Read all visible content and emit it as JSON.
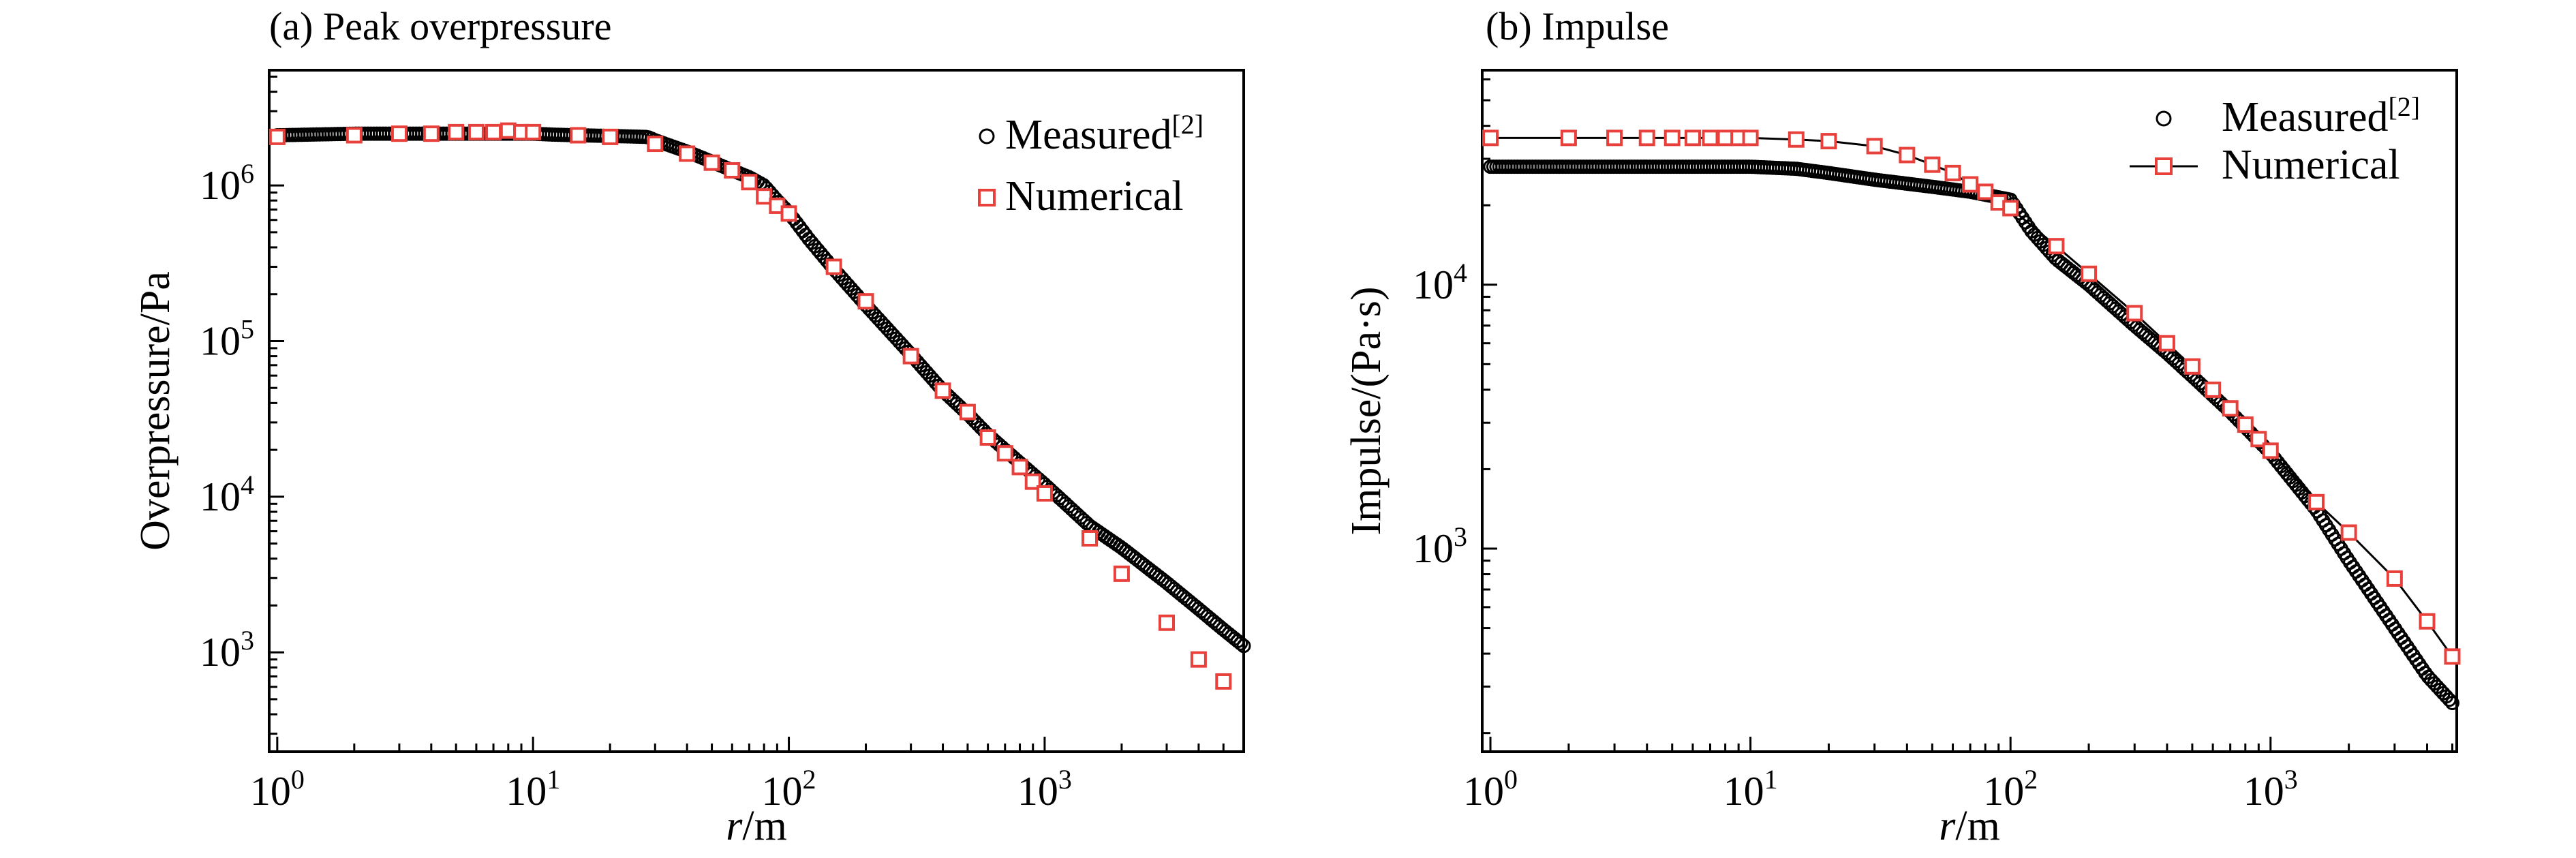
{
  "colors": {
    "measured": "#000000",
    "numerical": "#e8413c",
    "axis": "#000000"
  },
  "chart_data": [
    {
      "panel": "a",
      "type": "scatter",
      "title": "(a) Peak overpressure",
      "xlabel_var": "r",
      "xlabel_unit": "/m",
      "ylabel": "Overpressure/Pa",
      "x_scale": "log",
      "y_scale": "log",
      "xlim": [
        0.93,
        6000
      ],
      "ylim": [
        230,
        5500000
      ],
      "x_ticks": [
        {
          "base": "10",
          "exp": "0",
          "value": 1
        },
        {
          "base": "10",
          "exp": "1",
          "value": 10
        },
        {
          "base": "10",
          "exp": "2",
          "value": 100
        },
        {
          "base": "10",
          "exp": "3",
          "value": 1000
        }
      ],
      "y_ticks": [
        {
          "base": "10",
          "exp": "3",
          "value": 1000
        },
        {
          "base": "10",
          "exp": "4",
          "value": 10000
        },
        {
          "base": "10",
          "exp": "5",
          "value": 100000
        },
        {
          "base": "10",
          "exp": "6",
          "value": 1000000
        }
      ],
      "legend_position": "top-right",
      "series": [
        {
          "name": "Measured",
          "name_sup": "[2]",
          "marker": "circle",
          "dense": true,
          "points": [
            [
              1,
              2100000
            ],
            [
              2,
              2150000
            ],
            [
              3,
              2150000
            ],
            [
              4,
              2150000
            ],
            [
              5,
              2150000
            ],
            [
              6,
              2150000
            ],
            [
              7,
              2150000
            ],
            [
              8,
              2150000
            ],
            [
              9,
              2150000
            ],
            [
              10,
              2150000
            ],
            [
              12,
              2120000
            ],
            [
              15,
              2100000
            ],
            [
              20,
              2080000
            ],
            [
              28,
              2050000
            ],
            [
              30,
              1950000
            ],
            [
              40,
              1650000
            ],
            [
              50,
              1420000
            ],
            [
              60,
              1250000
            ],
            [
              70,
              1130000
            ],
            [
              80,
              1000000
            ],
            [
              90,
              800000
            ],
            [
              100,
              670000
            ],
            [
              120,
              450000
            ],
            [
              150,
              290000
            ],
            [
              200,
              170000
            ],
            [
              300,
              82000
            ],
            [
              400,
              48000
            ],
            [
              500,
              34000
            ],
            [
              600,
              25000
            ],
            [
              700,
              20000
            ],
            [
              800,
              16500
            ],
            [
              1000,
              12000
            ],
            [
              1500,
              6500
            ],
            [
              2000,
              4700
            ],
            [
              3000,
              2800
            ],
            [
              4000,
              1900
            ],
            [
              5000,
              1400
            ],
            [
              6000,
              1100
            ]
          ]
        },
        {
          "name": "Numerical",
          "marker": "square",
          "points": [
            [
              1,
              2050000
            ],
            [
              2,
              2100000
            ],
            [
              3,
              2150000
            ],
            [
              4,
              2150000
            ],
            [
              5,
              2200000
            ],
            [
              6,
              2200000
            ],
            [
              7,
              2200000
            ],
            [
              8,
              2250000
            ],
            [
              9,
              2200000
            ],
            [
              10,
              2200000
            ],
            [
              15,
              2100000
            ],
            [
              20,
              2050000
            ],
            [
              30,
              1850000
            ],
            [
              40,
              1600000
            ],
            [
              50,
              1400000
            ],
            [
              60,
              1250000
            ],
            [
              70,
              1050000
            ],
            [
              80,
              850000
            ],
            [
              90,
              740000
            ],
            [
              100,
              660000
            ],
            [
              150,
              300000
            ],
            [
              200,
              180000
            ],
            [
              300,
              80000
            ],
            [
              400,
              48000
            ],
            [
              500,
              35000
            ],
            [
              600,
              24000
            ],
            [
              700,
              19000
            ],
            [
              800,
              15500
            ],
            [
              900,
              12500
            ],
            [
              1000,
              10500
            ],
            [
              1500,
              5400
            ],
            [
              2000,
              3200
            ],
            [
              3000,
              1550
            ],
            [
              4000,
              900
            ],
            [
              5000,
              650
            ]
          ]
        }
      ]
    },
    {
      "panel": "b",
      "type": "line",
      "title": "(b) Impulse",
      "xlabel_var": "r",
      "xlabel_unit": "/m",
      "ylabel": "Impulse/(Pa·s)",
      "x_scale": "log",
      "y_scale": "log",
      "xlim": [
        0.93,
        5200
      ],
      "ylim": [
        170,
        65000
      ],
      "x_ticks": [
        {
          "base": "10",
          "exp": "0",
          "value": 1
        },
        {
          "base": "10",
          "exp": "1",
          "value": 10
        },
        {
          "base": "10",
          "exp": "2",
          "value": 100
        },
        {
          "base": "10",
          "exp": "3",
          "value": 1000
        }
      ],
      "y_ticks": [
        {
          "base": "10",
          "exp": "3",
          "value": 1000
        },
        {
          "base": "10",
          "exp": "4",
          "value": 10000
        }
      ],
      "legend_position": "top-right",
      "series": [
        {
          "name": "Measured",
          "name_sup": "[2]",
          "marker": "circle",
          "dense": true,
          "points": [
            [
              1,
              28000
            ],
            [
              2,
              28000
            ],
            [
              3,
              28000
            ],
            [
              4,
              28000
            ],
            [
              5,
              28000
            ],
            [
              6,
              28000
            ],
            [
              7,
              28000
            ],
            [
              8,
              28000
            ],
            [
              9,
              28000
            ],
            [
              10,
              28000
            ],
            [
              15,
              27500
            ],
            [
              20,
              26500
            ],
            [
              30,
              25000
            ],
            [
              50,
              23500
            ],
            [
              70,
              22500
            ],
            [
              100,
              21000
            ],
            [
              120,
              16000
            ],
            [
              150,
              12500
            ],
            [
              200,
              10000
            ],
            [
              300,
              7000
            ],
            [
              400,
              5500
            ],
            [
              500,
              4500
            ],
            [
              700,
              3300
            ],
            [
              1000,
              2300
            ],
            [
              1500,
              1400
            ],
            [
              2000,
              900
            ],
            [
              3000,
              500
            ],
            [
              4000,
              330
            ],
            [
              5000,
              260
            ]
          ]
        },
        {
          "name": "Numerical",
          "marker": "square",
          "line": true,
          "points": [
            [
              1,
              36000
            ],
            [
              2,
              36000
            ],
            [
              3,
              36000
            ],
            [
              4,
              36000
            ],
            [
              5,
              36000
            ],
            [
              6,
              36000
            ],
            [
              7,
              36000
            ],
            [
              8,
              36000
            ],
            [
              9,
              36000
            ],
            [
              10,
              36000
            ],
            [
              15,
              35500
            ],
            [
              20,
              35000
            ],
            [
              30,
              33500
            ],
            [
              40,
              31000
            ],
            [
              50,
              28500
            ],
            [
              60,
              26500
            ],
            [
              70,
              24000
            ],
            [
              80,
              22500
            ],
            [
              90,
              20500
            ],
            [
              100,
              19500
            ],
            [
              150,
              14000
            ],
            [
              200,
              11000
            ],
            [
              300,
              7800
            ],
            [
              400,
              6000
            ],
            [
              500,
              4900
            ],
            [
              600,
              4000
            ],
            [
              700,
              3400
            ],
            [
              800,
              2950
            ],
            [
              900,
              2600
            ],
            [
              1000,
              2350
            ],
            [
              1500,
              1500
            ],
            [
              2000,
              1150
            ],
            [
              3000,
              770
            ],
            [
              4000,
              530
            ],
            [
              5000,
              390
            ]
          ]
        }
      ]
    }
  ]
}
